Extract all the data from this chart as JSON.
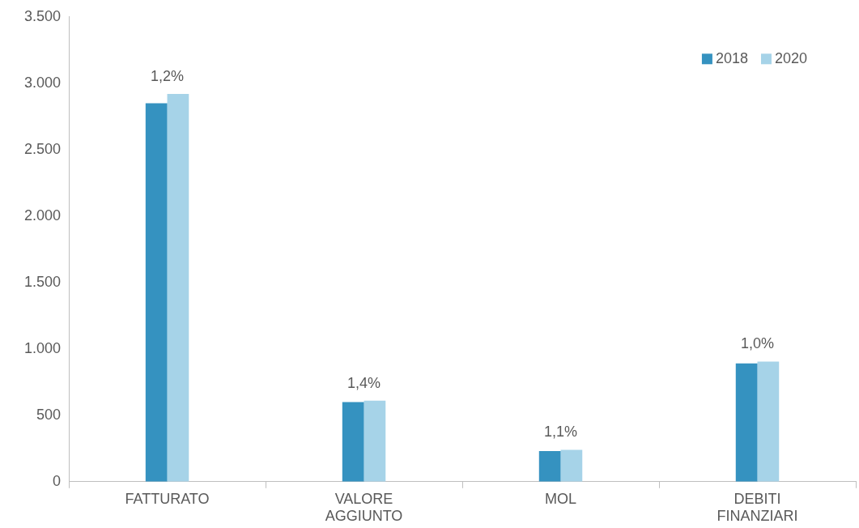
{
  "chart_data": {
    "type": "bar",
    "categories": [
      "FATTURATO",
      "VALORE AGGIUNTO",
      "MOL",
      "DEBITI FINANZIARI"
    ],
    "series": [
      {
        "name": "2018",
        "color": "#3592c0",
        "values": [
          2850,
          600,
          230,
          890
        ]
      },
      {
        "name": "2020",
        "color": "#a6d3e8",
        "values": [
          2920,
          610,
          240,
          905
        ]
      }
    ],
    "ylim": [
      0,
      3500
    ],
    "yticks": [
      0,
      500,
      {
        "value": 1000,
        "label": "1.000"
      },
      {
        "value": 1500,
        "label": "1.500"
      },
      {
        "value": 2000,
        "label": "2.000"
      },
      {
        "value": 2500,
        "label": "2.500"
      },
      {
        "value": 3000,
        "label": "3.000"
      },
      {
        "value": 3500,
        "label": "3.500"
      }
    ],
    "annotations": [
      "1,2%",
      "1,4%",
      "1,1%",
      "1,0%"
    ],
    "grid": false,
    "legend": "top right"
  }
}
